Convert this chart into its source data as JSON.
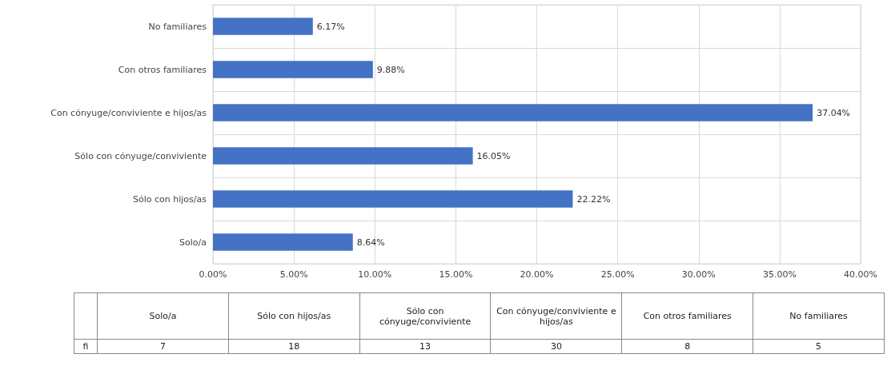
{
  "chart_data": [
    {
      "type": "bar",
      "orientation": "horizontal",
      "categories": [
        "No familiares",
        "Con otros familiares",
        "Con cónyuge/conviviente e hijos/as",
        "Sólo con cónyuge/conviviente",
        "Sólo con hijos/as",
        "Solo/a"
      ],
      "values": [
        6.17,
        9.88,
        37.04,
        16.05,
        22.22,
        8.64
      ],
      "value_labels": [
        "6.17%",
        "9.88%",
        "37.04%",
        "16.05%",
        "22.22%",
        "8.64%"
      ],
      "color": "#4472c4",
      "xlim": [
        0,
        40
      ],
      "xticks": [
        {
          "value": 0,
          "label": "0.00%"
        },
        {
          "value": 5,
          "label": "5.00%"
        },
        {
          "value": 10,
          "label": "10.00%"
        },
        {
          "value": 15,
          "label": "15.00%"
        },
        {
          "value": 20,
          "label": "20.00%"
        },
        {
          "value": 25,
          "label": "25.00%"
        },
        {
          "value": 30,
          "label": "30.00%"
        },
        {
          "value": 35,
          "label": "35.00%"
        },
        {
          "value": 40,
          "label": "40.00%"
        }
      ],
      "grid": true
    },
    {
      "type": "other",
      "categories": [
        "Solo/a",
        "Sólo con hijos/as",
        "Sólo con cónyuge/conviviente",
        "Con cónyuge/conviviente e hijos/as",
        "Con otros familiares",
        "No familiares"
      ],
      "series": [
        {
          "name": "fi",
          "values": [
            7,
            18,
            13,
            30,
            8,
            5
          ]
        }
      ],
      "data_labels": true
    }
  ]
}
